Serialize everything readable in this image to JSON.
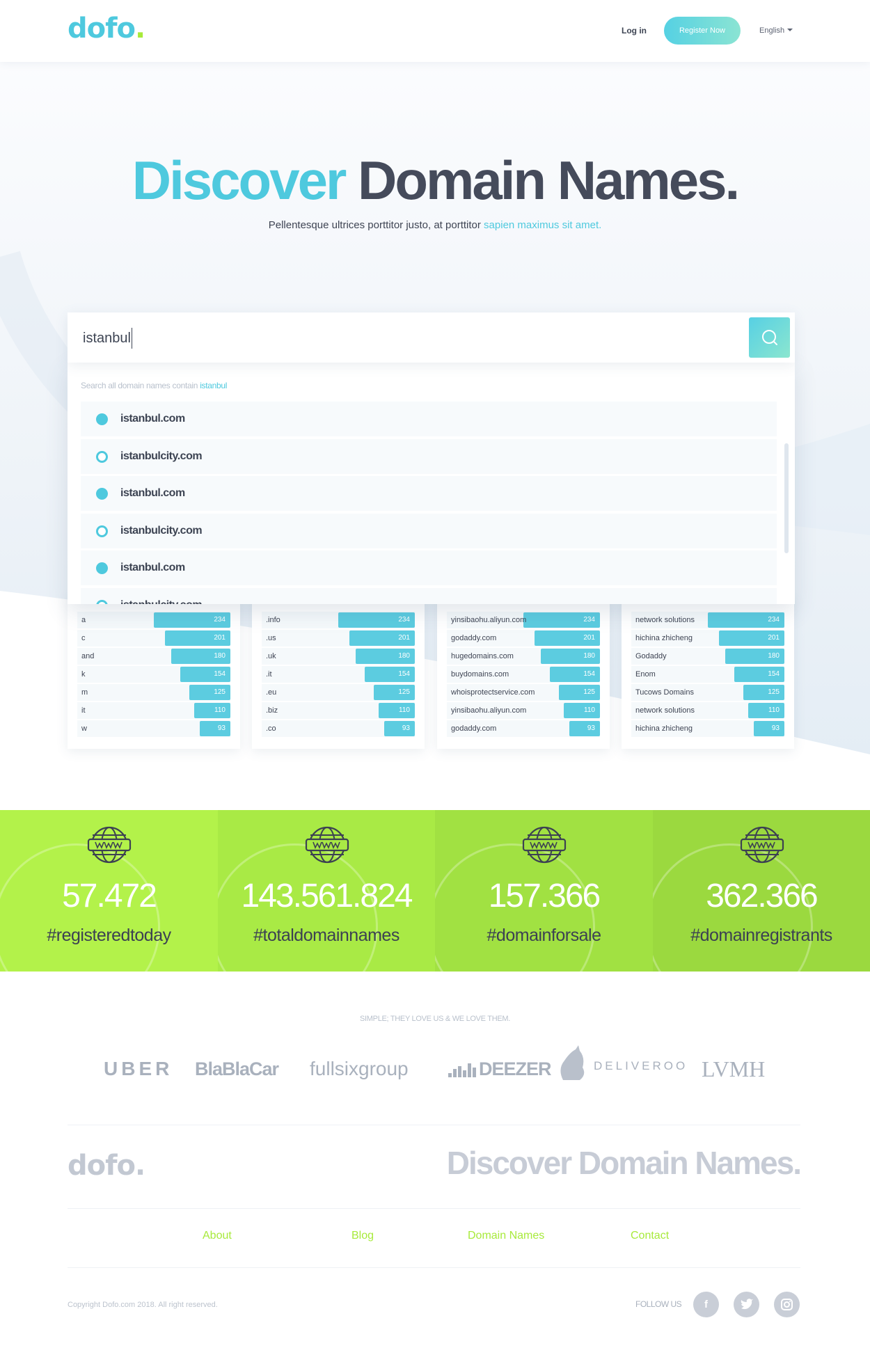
{
  "header": {
    "logo": "dofo",
    "logo_dot": ".",
    "login": "Log in",
    "register": "Register Now",
    "language": "English"
  },
  "hero": {
    "title_accent": "Discover",
    "title_rest": "Domain Names.",
    "subtitle": "Pellentesque ultrices porttitor justo, at porttitor",
    "subtitle_accent": "sapien maximus sit amet."
  },
  "search": {
    "value": "istanbul",
    "hint_prefix": "Search all domain names contain",
    "hint_term": "istanbul",
    "results": [
      {
        "name": "istanbul.com",
        "style": "filled"
      },
      {
        "name": "istanbulcity.com",
        "style": "ring"
      },
      {
        "name": "istanbul.com",
        "style": "filled"
      },
      {
        "name": "istanbulcity.com",
        "style": "ring"
      },
      {
        "name": "istanbul.com",
        "style": "filled"
      },
      {
        "name": "istanbulcity.com",
        "style": "ring"
      }
    ]
  },
  "cards": [
    {
      "rows": [
        [
          "a",
          234
        ],
        [
          "c",
          201
        ],
        [
          "and",
          180
        ],
        [
          "k",
          154
        ],
        [
          "m",
          125
        ],
        [
          "it",
          110
        ],
        [
          "w",
          93
        ]
      ]
    },
    {
      "rows": [
        [
          ".info",
          234
        ],
        [
          ".us",
          201
        ],
        [
          ".uk",
          180
        ],
        [
          ".it",
          154
        ],
        [
          ".eu",
          125
        ],
        [
          ".biz",
          110
        ],
        [
          ".co",
          93
        ]
      ]
    },
    {
      "rows": [
        [
          "yinsibaohu.aliyun.com",
          234
        ],
        [
          "godaddy.com",
          201
        ],
        [
          "hugedomains.com",
          180
        ],
        [
          "buydomains.com",
          154
        ],
        [
          "whoisprotectservice.com",
          125
        ],
        [
          "yinsibaohu.aliyun.com",
          110
        ],
        [
          "godaddy.com",
          93
        ]
      ]
    },
    {
      "rows": [
        [
          "network solutions",
          234
        ],
        [
          "hichina zhicheng",
          201
        ],
        [
          "Godaddy",
          180
        ],
        [
          "Enom",
          154
        ],
        [
          "Tucows Domains",
          125
        ],
        [
          "network solutions",
          110
        ],
        [
          "hichina zhicheng",
          93
        ]
      ]
    }
  ],
  "stats": [
    {
      "number": "57.472",
      "tag": "#registeredtoday",
      "color": "#b3f24a"
    },
    {
      "number": "143.561.824",
      "tag": "#totaldomainnames",
      "color": "#a9ea45"
    },
    {
      "number": "157.366",
      "tag": "#domainforsale",
      "color": "#a1e142"
    },
    {
      "number": "362.366",
      "tag": "#domainregistrants",
      "color": "#9bd93f"
    }
  ],
  "partners": {
    "title": "SIMPLE; THEY LOVE US & WE LOVE THEM.",
    "logos": [
      "UBER",
      "BlaBlaCar",
      "fullsixgroup",
      "DEEZER",
      "DELIVEROO",
      "LVMH"
    ]
  },
  "footer": {
    "logo": "dofo",
    "logo_dot": ".",
    "title": "Discover Domain Names.",
    "links": [
      "About",
      "Blog",
      "Domain Names",
      "Contact"
    ],
    "copyright": "Copyright Dofo.com 2018. All right reserved.",
    "follow": "FOLLOW US",
    "socials": [
      "facebook-icon",
      "twitter-icon",
      "instagram-icon"
    ]
  },
  "colors": {
    "accent": "#4ec9de",
    "green": "#a7ea3a",
    "bar": "#5ccce0"
  }
}
